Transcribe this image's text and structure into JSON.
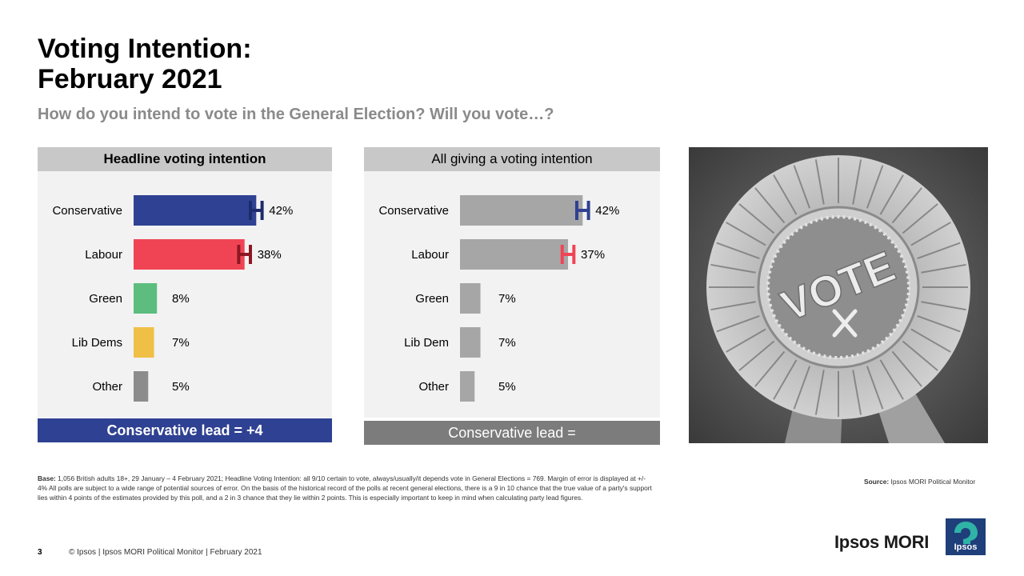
{
  "page": {
    "title_line1": "Voting Intention:",
    "title_line2": "February 2021",
    "subtitle": "How do you intend to vote in the General Election? Will you vote…?",
    "base_label": "Base:",
    "base_text": " 1,056 British adults 18+, 29 January – 4 February 2021; Headline Voting Intention:  all 9/10 certain to vote, always/usually/it depends vote in General Elections = 769. Margin of error is displayed at +/- 4% All polls are subject to a wide range of potential sources of error. On the basis of the historical record of the polls at recent general elections, there is a 9 in 10 chance that the true value of a party's support lies within 4 points of the estimates provided by this poll, and a 2 in 3 chance that they lie within 2 points. This is especially important to keep in mind when calculating party lead figures.",
    "source_label": "Source:",
    "source_text": " Ipsos MORI Political Monitor",
    "page_number": "3",
    "copyright": "© Ipsos | Ipsos MORI  Political Monitor | February 2021",
    "brand": "Ipsos MORI",
    "logo_text": "Ipsos",
    "photo_text": "VOTE"
  },
  "chart_data": [
    {
      "type": "bar",
      "title": "Headline voting intention",
      "categories": [
        "Conservative",
        "Labour",
        "Green",
        "Lib Dems",
        "Other"
      ],
      "values": [
        42,
        38,
        8,
        7,
        5
      ],
      "value_labels": [
        "42%",
        "38%",
        "8%",
        "7%",
        "5%"
      ],
      "colors": [
        "#2e4192",
        "#f04455",
        "#5cbd7f",
        "#f0bf45",
        "#8c8c8c"
      ],
      "error_bar_colors": [
        "#1c2a6e",
        "#8c1722",
        null,
        null,
        null
      ],
      "margin_of_error": 4,
      "orientation": "horizontal",
      "footer": "Conservative lead = +4"
    },
    {
      "type": "bar",
      "title": "All giving a voting intention",
      "categories": [
        "Conservative",
        "Labour",
        "Green",
        "Lib Dem",
        "Other"
      ],
      "values": [
        42,
        37,
        7,
        7,
        5
      ],
      "value_labels": [
        "42%",
        "37%",
        "7%",
        "7%",
        "5%"
      ],
      "colors": [
        "#a6a6a6",
        "#a6a6a6",
        "#a6a6a6",
        "#a6a6a6",
        "#a6a6a6"
      ],
      "error_bar_colors": [
        "#2e4192",
        "#f04455",
        null,
        null,
        null
      ],
      "margin_of_error": 4,
      "orientation": "horizontal",
      "footer": "Conservative lead ="
    }
  ]
}
